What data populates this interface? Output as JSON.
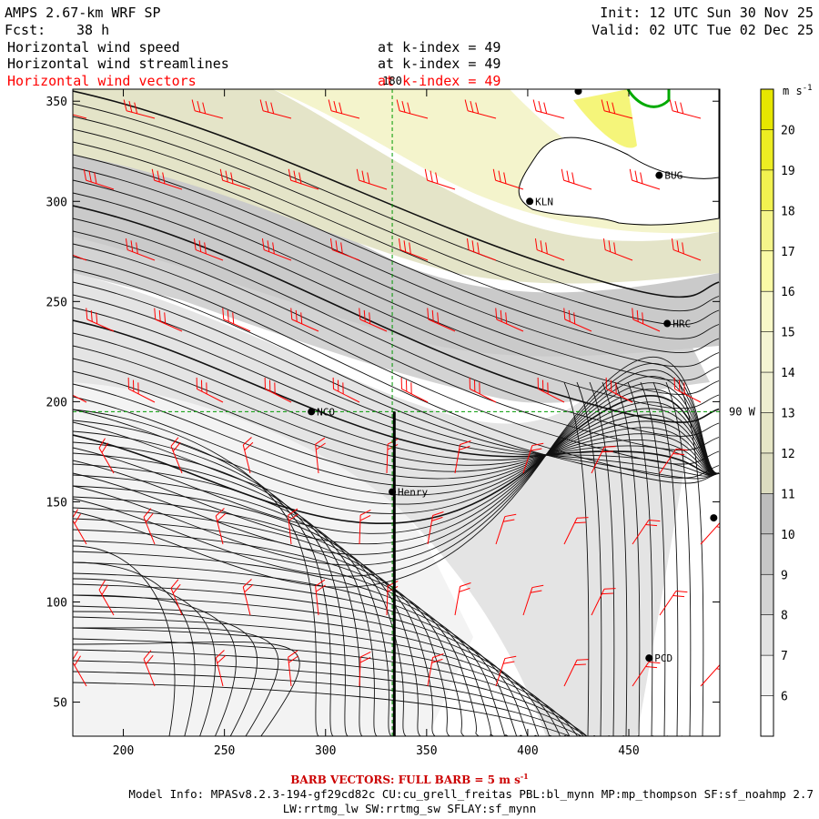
{
  "header": {
    "model": "AMPS 2.67-km WRF SP",
    "fcst_label": "Fcst:",
    "fcst_value": "38 h",
    "init": "Init: 12 UTC Sun 30 Nov 25",
    "valid": "Valid: 02 UTC Tue 02 Dec 25",
    "fields": [
      {
        "name": "Horizontal wind speed",
        "level": "at k-index =  49",
        "color": "#000000"
      },
      {
        "name": "Horizontal wind streamlines",
        "level": "at k-index =  49",
        "color": "#000000"
      },
      {
        "name": "Horizontal wind vectors",
        "level": "at k-index =  49",
        "color": "#ff0000"
      }
    ]
  },
  "chart_data": {
    "type": "heatmap",
    "description_of_layers": [
      "wind speed shading",
      "streamlines",
      "wind barbs"
    ],
    "xlim": [
      175,
      495
    ],
    "ylim": [
      33,
      356
    ],
    "xticks": [
      200,
      250,
      300,
      350,
      400,
      450
    ],
    "yticks": [
      50,
      100,
      150,
      200,
      250,
      300,
      350
    ],
    "grid_lines": {
      "vertical_x": 333,
      "vertical_label": "180",
      "horizontal_y": 195,
      "horizontal_label": "90 W"
    },
    "cross_section_line": {
      "x": 334,
      "y_from": 33,
      "y_to": 195
    },
    "stations": [
      {
        "label": "KLN",
        "x": 401,
        "y": 300
      },
      {
        "label": "BUG",
        "x": 465,
        "y": 313
      },
      {
        "label": "HRC",
        "x": 469,
        "y": 239
      },
      {
        "label": "NCO",
        "x": 293,
        "y": 195
      },
      {
        "label": "Henry",
        "x": 333,
        "y": 155
      },
      {
        "label": "PCD",
        "x": 460,
        "y": 72
      },
      {
        "label": "",
        "x": 425,
        "y": 355
      },
      {
        "label": "",
        "x": 492,
        "y": 142
      }
    ],
    "colorbar": {
      "unit": "m s",
      "unit_exp": "-1",
      "levels": [
        6,
        7,
        8,
        9,
        10,
        11,
        12,
        13,
        14,
        15,
        16,
        17,
        18,
        19,
        20
      ],
      "colors": [
        "#ffffff",
        "#f2f2f2",
        "#e2e2e2",
        "#d3d3d3",
        "#c6c6c6",
        "#bdbdbd",
        "#dcdcc0",
        "#e6e6c6",
        "#eeeed0",
        "#f4f4d2",
        "#f8f8c8",
        "#fafaa6",
        "#f5f58a",
        "#f2f250",
        "#eded22",
        "#e6e600"
      ]
    }
  },
  "footer": {
    "barb_title": "BARB VECTORS:  FULL BARB = 5 m s",
    "barb_exp": "-1",
    "model_info": "Model Info: MPASv8.2.3-194-gf29cd82c CU:cu_grell_freitas PBL:bl_mynn MP:mp_thompson SF:sf_noahmp 2.7",
    "model_info2": "LW:rrtmg_lw SW:rrtmg_sw SFLAY:sf_mynn"
  }
}
